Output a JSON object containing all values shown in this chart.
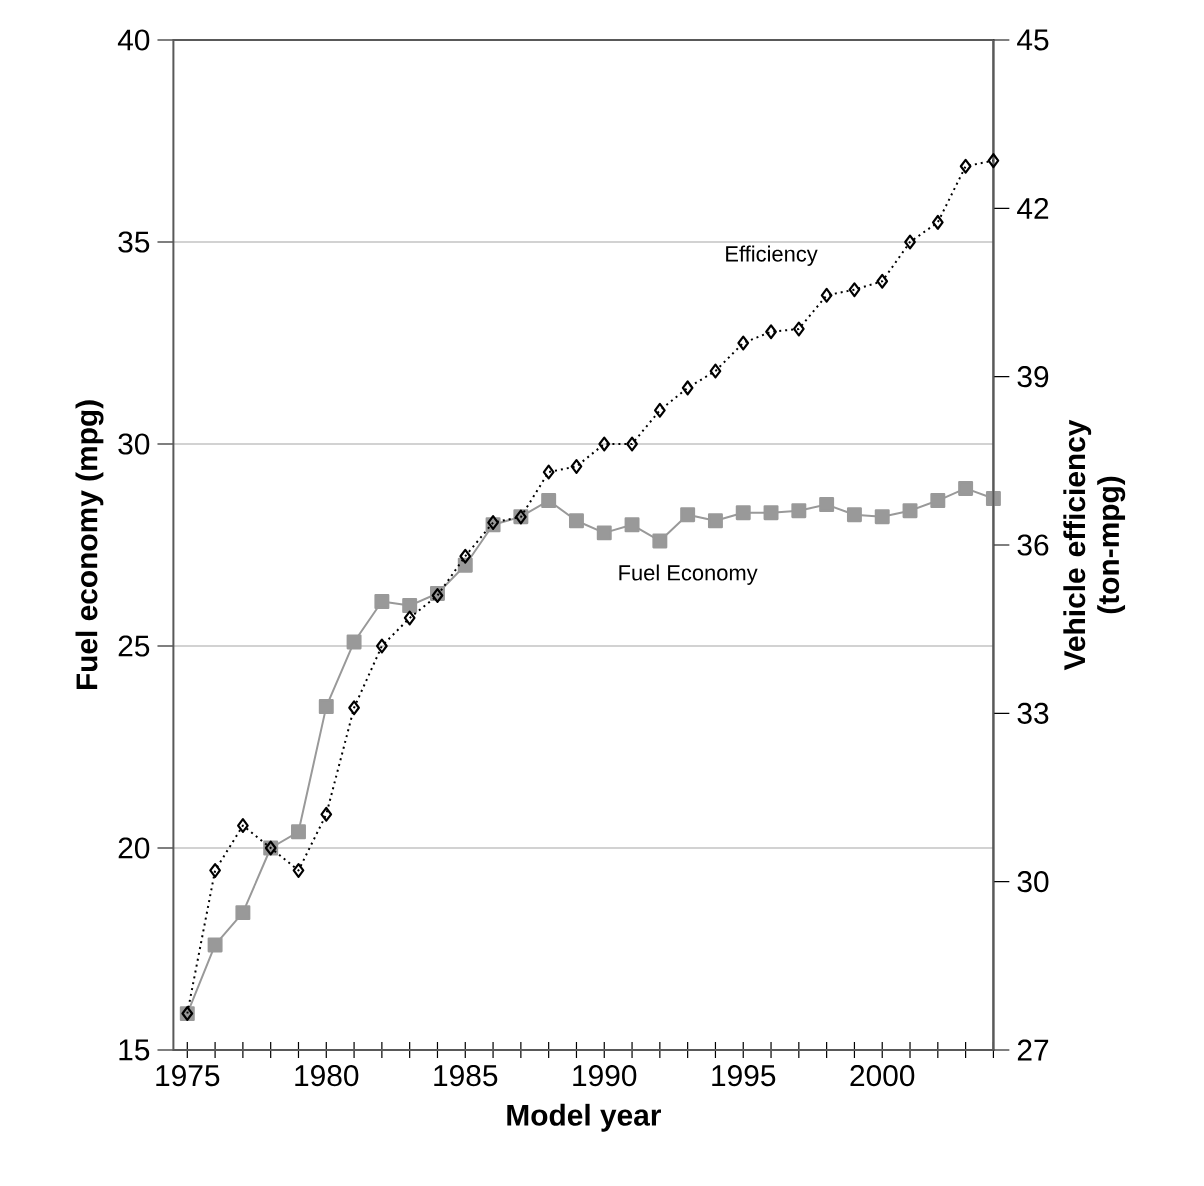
{
  "chart_data": {
    "type": "line",
    "xlabel": "Model year",
    "ylabel": "Fuel economy (mpg)",
    "y2label": "Vehicle efficiency (ton-mpg)",
    "x": [
      1975,
      1976,
      1977,
      1978,
      1979,
      1980,
      1981,
      1982,
      1983,
      1984,
      1985,
      1986,
      1987,
      1988,
      1989,
      1990,
      1991,
      1992,
      1993,
      1994,
      1995,
      1996,
      1997,
      1998,
      1999,
      2000,
      2001,
      2002,
      2003,
      2004
    ],
    "xlim": [
      1974.5,
      2004
    ],
    "xticks": [
      1975,
      {
        "value": 1976,
        "label": null
      },
      {
        "value": 1977,
        "label": null
      },
      {
        "value": 1978,
        "label": null
      },
      {
        "value": 1979,
        "label": null
      },
      1980,
      {
        "value": 1981,
        "label": null
      },
      {
        "value": 1982,
        "label": null
      },
      {
        "value": 1983,
        "label": null
      },
      {
        "value": 1984,
        "label": null
      },
      1985,
      {
        "value": 1986,
        "label": null
      },
      {
        "value": 1987,
        "label": null
      },
      {
        "value": 1988,
        "label": null
      },
      {
        "value": 1989,
        "label": null
      },
      1990,
      {
        "value": 1991,
        "label": null
      },
      {
        "value": 1992,
        "label": null
      },
      {
        "value": 1993,
        "label": null
      },
      {
        "value": 1994,
        "label": null
      },
      1995,
      {
        "value": 1996,
        "label": null
      },
      {
        "value": 1997,
        "label": null
      },
      {
        "value": 1998,
        "label": null
      },
      {
        "value": 1999,
        "label": null
      },
      2000,
      {
        "value": 2001,
        "label": null
      },
      {
        "value": 2002,
        "label": null
      },
      {
        "value": 2003,
        "label": null
      },
      {
        "value": 2004,
        "label": null
      }
    ],
    "ylim": [
      15,
      40
    ],
    "yticks": [
      15,
      20,
      25,
      30,
      35,
      40
    ],
    "y2lim": [
      27,
      45
    ],
    "y2ticks": [
      27,
      30,
      33,
      36,
      39,
      42,
      45
    ],
    "grid": "y",
    "series": [
      {
        "name": "Efficiency",
        "axis": "y2",
        "color": "#000000",
        "marker": "diamond",
        "line_style": "dotted",
        "values": [
          27.65,
          30.2,
          31.0,
          30.6,
          30.2,
          31.2,
          33.1,
          34.2,
          34.7,
          35.1,
          35.8,
          36.4,
          36.5,
          37.3,
          37.4,
          37.8,
          37.8,
          38.4,
          38.8,
          39.1,
          39.6,
          39.8,
          39.85,
          40.45,
          40.55,
          40.7,
          41.4,
          41.75,
          42.75,
          42.85
        ]
      },
      {
        "name": "Fuel Economy",
        "color": "#999999",
        "marker": "square",
        "line_style": "solid",
        "values": [
          15.9,
          17.6,
          18.4,
          20.0,
          20.4,
          23.5,
          25.1,
          26.1,
          26.0,
          26.3,
          27.0,
          28.0,
          28.2,
          28.6,
          28.1,
          27.8,
          28.0,
          27.6,
          28.25,
          28.1,
          28.3,
          28.3,
          28.35,
          28.5,
          28.25,
          28.2,
          28.35,
          28.6,
          28.9,
          28.65
        ]
      }
    ]
  }
}
